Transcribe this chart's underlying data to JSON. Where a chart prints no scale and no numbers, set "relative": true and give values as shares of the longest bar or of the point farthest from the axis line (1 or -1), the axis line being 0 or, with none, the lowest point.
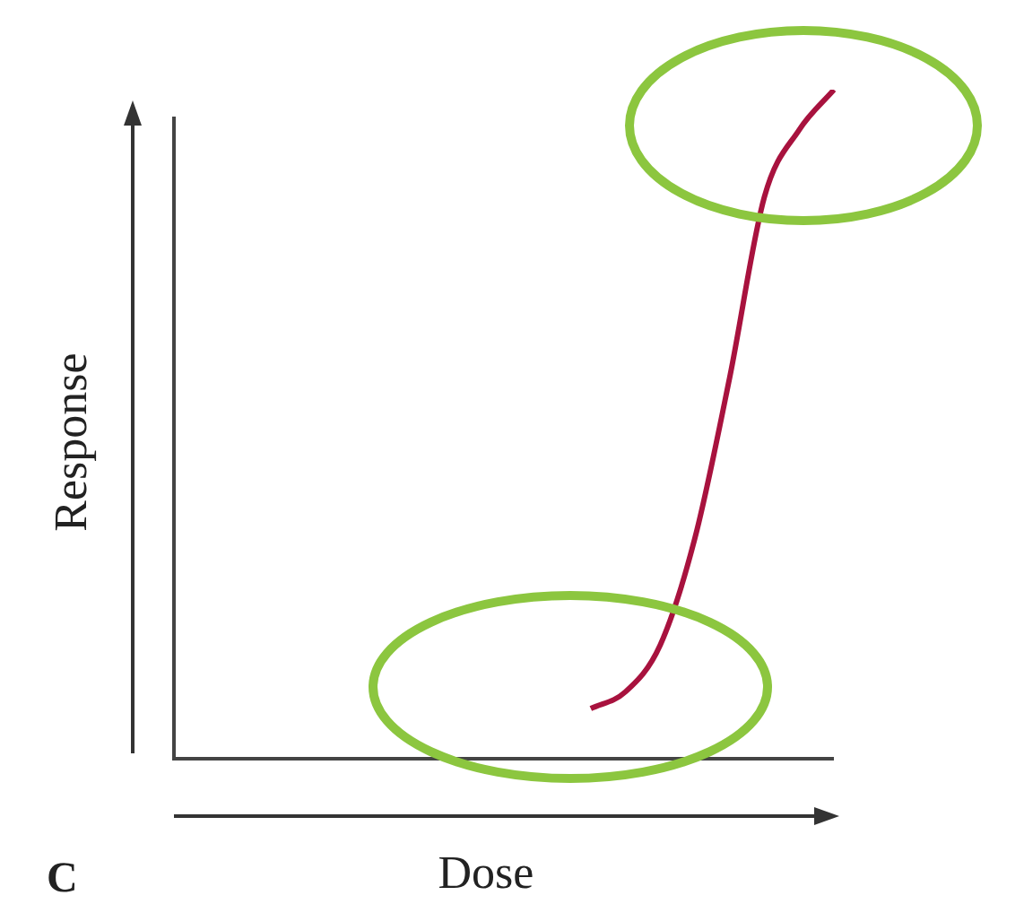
{
  "chart_data": {
    "type": "line",
    "relative": true,
    "xlabel": "Dose",
    "ylabel": "Response",
    "annotations": [
      "C"
    ],
    "legend": false,
    "marker": "none",
    "categories": [
      null,
      null,
      null,
      null,
      null,
      null,
      null,
      null,
      null,
      null,
      null,
      null,
      null,
      null,
      null,
      null,
      null,
      null,
      null,
      null
    ],
    "series": [
      {
        "color": "#a8123e",
        "values": [
          null,
          null,
          null,
          null,
          null,
          null,
          null,
          null,
          null,
          null,
          null,
          null,
          0.075,
          0.1,
          0.17,
          0.33,
          0.57,
          0.84,
          0.94,
          1
        ]
      }
    ]
  }
}
